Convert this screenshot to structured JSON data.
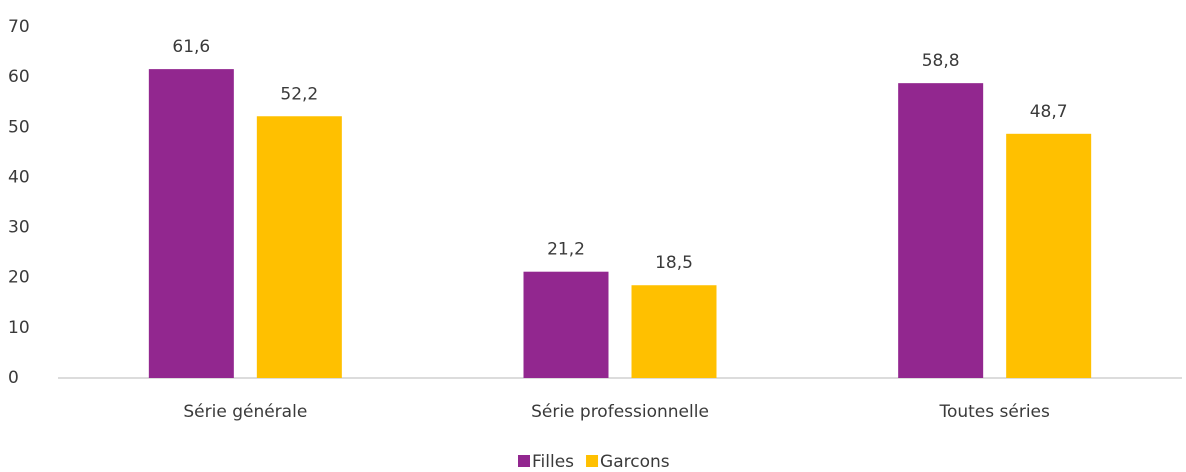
{
  "chart_data": {
    "type": "bar",
    "categories": [
      "Série générale",
      "Série professionnelle",
      "Toutes séries"
    ],
    "series": [
      {
        "name": "Filles",
        "color": "#92278f",
        "values": [
          61.6,
          21.2,
          58.8
        ],
        "value_labels": [
          "61,6",
          "21,2",
          "58,8"
        ]
      },
      {
        "name": "Garcons",
        "color": "#ffc000",
        "values": [
          52.2,
          18.5,
          48.7
        ],
        "value_labels": [
          "52,2",
          "18,5",
          "48,7"
        ]
      }
    ],
    "ylim": [
      0,
      70
    ],
    "yticks": [
      0,
      10,
      20,
      30,
      40,
      50,
      60,
      70
    ],
    "grid": false,
    "legend": "bottom"
  }
}
